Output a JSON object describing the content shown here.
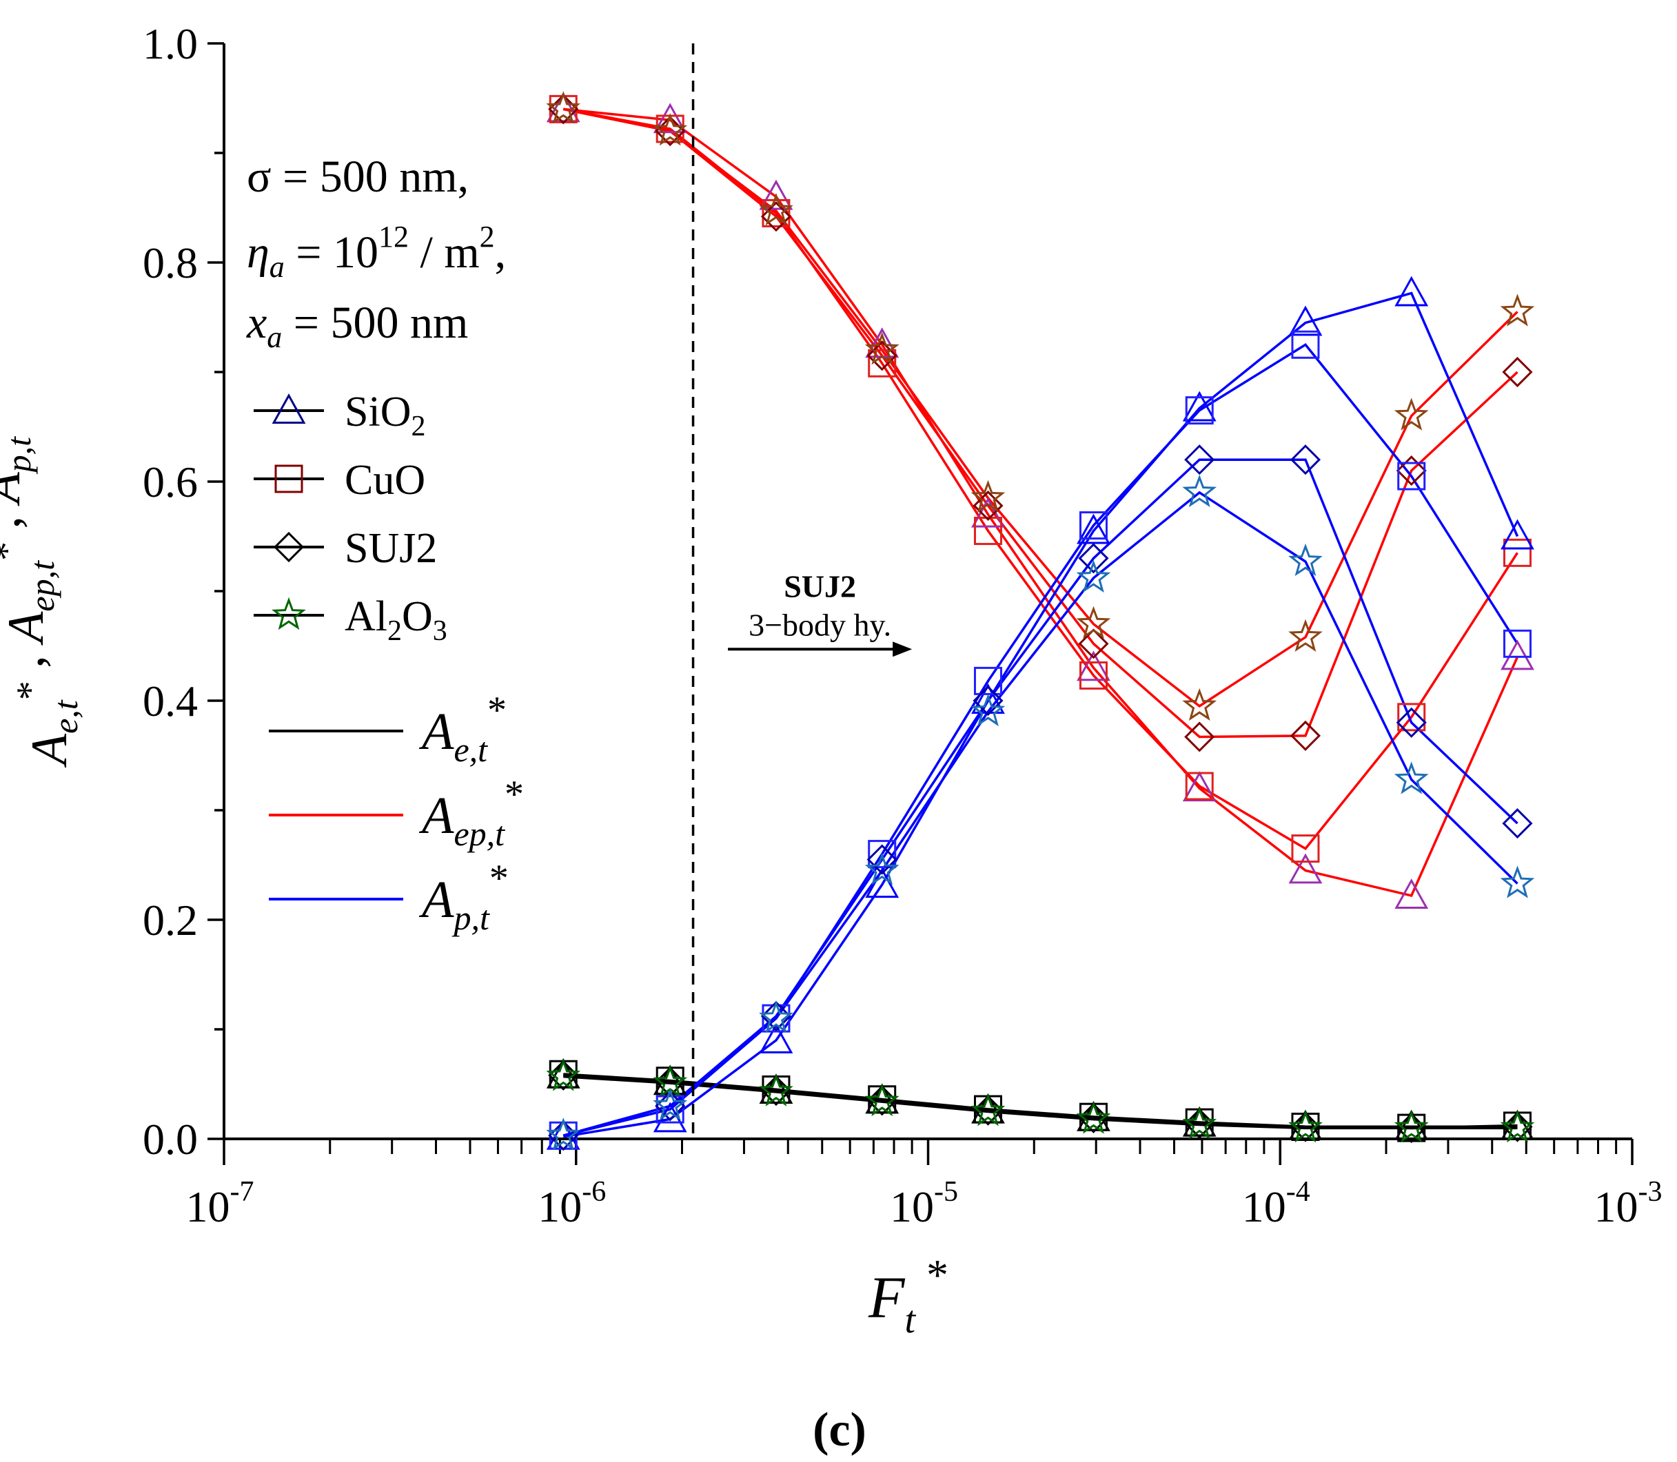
{
  "chart_data": {
    "type": "line",
    "x_scale": "log",
    "xlim": [
      1e-07,
      0.001
    ],
    "ylim": [
      0.0,
      1.0
    ],
    "x_tick_labels": [
      {
        "base": "10",
        "exp": "-7"
      },
      {
        "base": "10",
        "exp": "-6"
      },
      {
        "base": "10",
        "exp": "-5"
      },
      {
        "base": "10",
        "exp": "-4"
      },
      {
        "base": "10",
        "exp": "-3"
      }
    ],
    "y_tick_labels": [
      "0.0",
      "0.2",
      "0.4",
      "0.6",
      "0.8",
      "1.0"
    ],
    "xlabel": {
      "main": "F",
      "sub": "t",
      "sup": "*"
    },
    "ylabel": "Ae,t* , Aep,t* , Ap,t*",
    "ylabel_parts": [
      {
        "main": "A",
        "sub": "e,t",
        "sup": "*"
      },
      {
        "sep": " , "
      },
      {
        "main": "A",
        "sub": "ep,t",
        "sup": "*"
      },
      {
        "sep": " , "
      },
      {
        "main": "A",
        "sub": "p,t",
        "sup": "*"
      }
    ],
    "panel_label": "(c)",
    "annotations": {
      "params": [
        {
          "text": "σ = 500 nm,"
        },
        {
          "var": "η",
          "sub": "a",
          "rest": " = 10",
          "sup": "12",
          "rest2": " / m",
          "sup2": "2",
          "tail": ","
        },
        {
          "var": "x",
          "sub": "a",
          "rest": " = 500 nm"
        }
      ],
      "vline_x": 2.15e-06,
      "arrow_title": "SUJ2",
      "arrow_text": "3−body hy.",
      "arrow_from": 2.7e-06,
      "arrow_to": 9e-06,
      "arrow_y": 0.447
    },
    "legend_materials": [
      {
        "key": "SiO2",
        "parts": [
          "SiO",
          "2"
        ],
        "marker": "triangle"
      },
      {
        "key": "CuO",
        "parts": [
          "CuO"
        ],
        "marker": "square"
      },
      {
        "key": "SUJ2",
        "parts": [
          "SUJ2"
        ],
        "marker": "diamond"
      },
      {
        "key": "Al2O3",
        "parts": [
          "Al",
          "2",
          "O",
          "3"
        ],
        "marker": "star"
      }
    ],
    "legend_lines": [
      {
        "label": "Ae,t*",
        "main": "A",
        "sub": "e,t",
        "sup": "*",
        "color": "#000000"
      },
      {
        "label": "Aep,t*",
        "main": "A",
        "sub": "ep,t",
        "sup": "*",
        "color": "#ff0000"
      },
      {
        "label": "Ap,t*",
        "main": "A",
        "sub": "p,t",
        "sup": "*",
        "color": "#0000ff"
      }
    ],
    "x": [
      9.2e-07,
      1.85e-06,
      3.7e-06,
      7.4e-06,
      1.48e-05,
      2.95e-05,
      5.9e-05,
      0.000118,
      0.000236,
      0.000472
    ],
    "series": [
      {
        "name": "Ae,t* SiO2",
        "material": "SiO2",
        "marker": "triangle",
        "color": "#000000",
        "marker_color": "#000000",
        "values": [
          0.058,
          0.052,
          0.044,
          0.035,
          0.026,
          0.019,
          0.014,
          0.011,
          0.011,
          0.011
        ]
      },
      {
        "name": "Ae,t* CuO",
        "material": "CuO",
        "marker": "square",
        "color": "#000000",
        "marker_color": "#000000",
        "values": [
          0.059,
          0.053,
          0.045,
          0.036,
          0.027,
          0.02,
          0.015,
          0.011,
          0.01,
          0.012
        ]
      },
      {
        "name": "Ae,t* SUJ2",
        "material": "SUJ2",
        "marker": "diamond",
        "color": "#000000",
        "marker_color": "#000000",
        "values": [
          0.058,
          0.052,
          0.044,
          0.035,
          0.026,
          0.019,
          0.014,
          0.011,
          0.01,
          0.011
        ]
      },
      {
        "name": "Ae,t* Al2O3",
        "material": "Al2O3",
        "marker": "star",
        "color": "#000000",
        "marker_color": "#006400",
        "values": [
          0.057,
          0.051,
          0.043,
          0.034,
          0.025,
          0.018,
          0.013,
          0.01,
          0.01,
          0.01
        ]
      },
      {
        "name": "Aep,t* SiO2",
        "material": "SiO2",
        "marker": "triangle",
        "color": "#ff0000",
        "marker_color": "#9b30b0",
        "values": [
          0.94,
          0.93,
          0.86,
          0.725,
          0.57,
          0.43,
          0.32,
          0.245,
          0.222,
          0.44
        ]
      },
      {
        "name": "Aep,t* CuO",
        "material": "CuO",
        "marker": "square",
        "color": "#ff0000",
        "marker_color": "#e02020",
        "values": [
          0.94,
          0.922,
          0.845,
          0.708,
          0.555,
          0.423,
          0.322,
          0.265,
          0.385,
          0.535
        ]
      },
      {
        "name": "Aep,t* SUJ2",
        "material": "SUJ2",
        "marker": "diamond",
        "color": "#ff0000",
        "marker_color": "#800000",
        "values": [
          0.94,
          0.92,
          0.842,
          0.715,
          0.578,
          0.452,
          0.367,
          0.368,
          0.61,
          0.7
        ]
      },
      {
        "name": "Aep,t* Al2O3",
        "material": "Al2O3",
        "marker": "star",
        "color": "#ff0000",
        "marker_color": "#8b4513",
        "values": [
          0.94,
          0.92,
          0.847,
          0.72,
          0.585,
          0.47,
          0.395,
          0.458,
          0.66,
          0.755
        ]
      },
      {
        "name": "Ap,t* SiO2",
        "material": "SiO2",
        "marker": "triangle",
        "color": "#0000ff",
        "marker_color": "#0000ff",
        "values": [
          0.002,
          0.018,
          0.09,
          0.232,
          0.4,
          0.555,
          0.667,
          0.745,
          0.772,
          0.55
        ]
      },
      {
        "name": "Ap,t* CuO",
        "material": "CuO",
        "marker": "square",
        "color": "#0000ff",
        "marker_color": "#2020ff",
        "values": [
          0.003,
          0.027,
          0.11,
          0.26,
          0.418,
          0.56,
          0.665,
          0.725,
          0.605,
          0.452
        ]
      },
      {
        "name": "Ap,t* SUJ2",
        "material": "SUJ2",
        "marker": "diamond",
        "color": "#0000ff",
        "marker_color": "#0000aa",
        "values": [
          0.003,
          0.03,
          0.112,
          0.255,
          0.4,
          0.53,
          0.62,
          0.62,
          0.38,
          0.288
        ]
      },
      {
        "name": "Ap,t* Al2O3",
        "material": "Al2O3",
        "marker": "star",
        "color": "#0000ff",
        "marker_color": "#1e6eb4",
        "values": [
          0.003,
          0.03,
          0.11,
          0.245,
          0.39,
          0.512,
          0.59,
          0.527,
          0.328,
          0.233
        ]
      }
    ]
  }
}
